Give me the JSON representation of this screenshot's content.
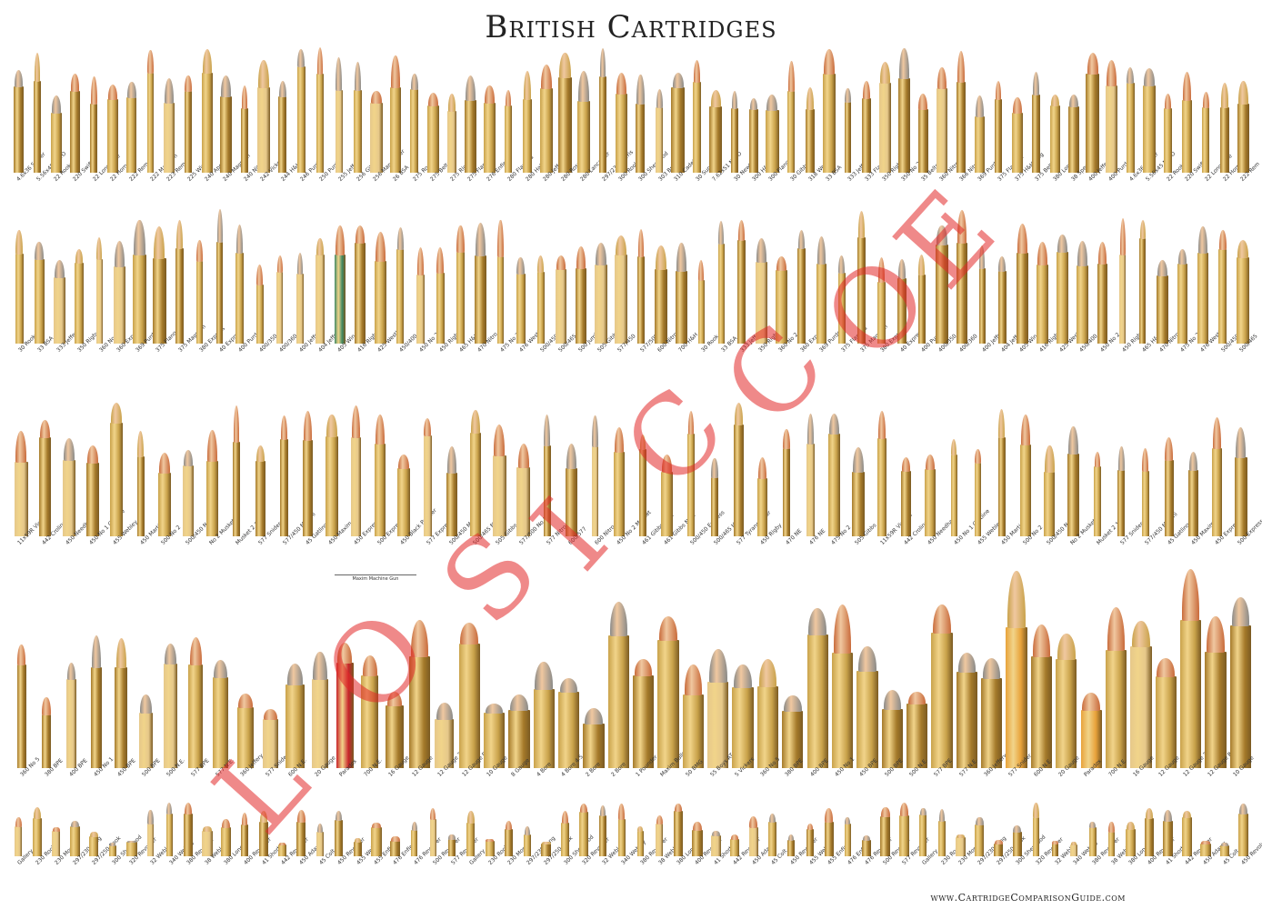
{
  "title": "British Cartridges",
  "footer": "www.CartridgeComparisonGuide.com",
  "note": "Maxim Machine Gun",
  "watermark": [
    "L",
    "O",
    "S",
    "I",
    "C",
    "C",
    "O",
    "E"
  ],
  "colors": {
    "brass": "#c9a24a",
    "brass_dark": "#a57a2a",
    "copper": "#c86a3a",
    "lead": "#8a8a88",
    "paper": "#e6c88a",
    "green": "#3f8a63",
    "red": "#c8242a",
    "orange": "#e8a23a"
  },
  "rows": [
    {
      "labels": [
        "4.6x36 Sniper",
        "5.56x45 NATO",
        "22 Rook",
        "220 Swift",
        "22 Long Rifle",
        "22 Hornet",
        "222 Rem",
        "222 Magnum",
        "223 Rem",
        "225 Win",
        "240 Apex",
        "240 Magnum",
        "240 Nitro",
        "242 Vickers",
        "244 H&H",
        "246 Purdey",
        "250 Purdey",
        "255 Jeffery",
        "256 Gibbs",
        "256 Mannlicher",
        "26 BSA",
        "275 Rook",
        "275 Belted",
        "275 Rigby",
        "275 Flanged",
        "276 Enfield",
        "280 Flanged",
        "280 Halger",
        "280 Jeffery",
        "280 Ross",
        "280 Lancaster",
        "297/230 Morris",
        "300 Rook",
        "300 Sherwood",
        "303 British",
        "310 Cadet",
        "30 Super",
        "7.62x51 NATO",
        "30 Newton",
        "300 H&H",
        "300 Flanged",
        "30 Gibbs",
        "318 Westley",
        "33 BSA",
        "333 Jeffery",
        "333 Flanged",
        "350 Rigby",
        "350 No 2",
        "35 Belted",
        "360 Nitro",
        "366 Nitro",
        "369 Purdey",
        "375 Flanged",
        "375 H&H Mag",
        "375 Belted",
        "380 Long",
        "38 Special",
        "400 Jeffery",
        "400 Purdey"
      ],
      "top": 50,
      "height": 140,
      "count": 66
    },
    {
      "labels": [
        "30 Rook",
        "33 BSA",
        "333 Jeffery",
        "350 Rigby",
        "360 No 2",
        "360 Express",
        "369 Purdey",
        "375 Flanged",
        "375 Magnum",
        "380 Express",
        "40 Express",
        "400 Purdey",
        "400/350",
        "400/360",
        "400 Jeffery",
        "404 Jeffery",
        "405 Win",
        "416 Rigby",
        "425 Westley",
        "450/400",
        "450 No 2",
        "450 Rigby",
        "465 H&H",
        "470 Nitro",
        "475 No 2",
        "476 Westley",
        "500/450",
        "500/465",
        "500 Jumbo",
        "505 Gibbs",
        "577/450",
        "577/500",
        "600 Nitro",
        "700 H&H"
      ],
      "top": 228,
      "height": 150,
      "count": 62
    },
    {
      "labels": [
        "11x59R Vickers",
        "442 Crolinc",
        "450 Needham",
        "450 No 1 Carbine",
        "455 Webley",
        "450 Martini",
        "500 No 2",
        "500/450 No 1",
        "No 2 Musket",
        "Musket 2 1/2",
        "577 Snider",
        "577/450 Martini",
        "45 Gatling",
        "450 Maxim",
        "450 Express",
        "500 Express",
        "450 Black Powder",
        "577 Express",
        "500/450 Mag",
        "500/465 Nitro",
        "505 Gibbs",
        "577/500 No 2",
        "577 Nitro 3",
        "600/577",
        "600 Nitro",
        "450 No 2 Musket",
        "461 Gibbs No 1",
        "461 Gibbs No 2",
        "500/450 Express",
        "500/465 H&H",
        "577 Tyrannosaur",
        "450 Rigby",
        "470 NE",
        "476 NE",
        "475 No 2",
        "505 Gibbs"
      ],
      "top": 440,
      "height": 150,
      "count": 52
    },
    {
      "labels": [
        "360 No 5",
        "380 BPE",
        "400 BPE",
        "450 No 1",
        "450 BPE",
        "500 BPE",
        "500 N.E.",
        "577 BPE",
        "577 N.E.",
        "360 Jeffery",
        "577 Snider",
        "600 N.E.",
        "20 Gauge",
        "Paradox",
        "700 N.E.",
        "16 Gauge",
        "12 Gauge",
        "12 Gauge 3",
        "12 Gauge Paradox",
        "10 Gauge",
        "8 Gauge",
        "4 Bore",
        "4 Bore 4.5",
        "2 Bore",
        "2 Bore",
        "1 Pounder",
        "Maxim Bullet",
        "50 BMG",
        "55 Boys AT",
        "5 Vickers"
      ],
      "top": 585,
      "height": 260,
      "count": 50
    },
    {
      "labels": [
        "Gallery",
        "230 Rook",
        "230 Morris",
        "297/230 Long",
        "297/250 Rook",
        "300 Sherwood",
        "320 Revolver",
        "32 Webley",
        "340 Webley",
        "380 Revolver",
        "38 Webley",
        "380 Long",
        "400 Revolver",
        "41 Short",
        "442 Revolver",
        "450 Adams",
        "45 Colt",
        "450 Revolver",
        "455 Webley",
        "455 Enfield",
        "476 Enfield",
        "476 Revolver",
        "500 Revolver",
        "577 Revolver"
      ],
      "top": 880,
      "height": 62,
      "count": 66
    }
  ]
}
